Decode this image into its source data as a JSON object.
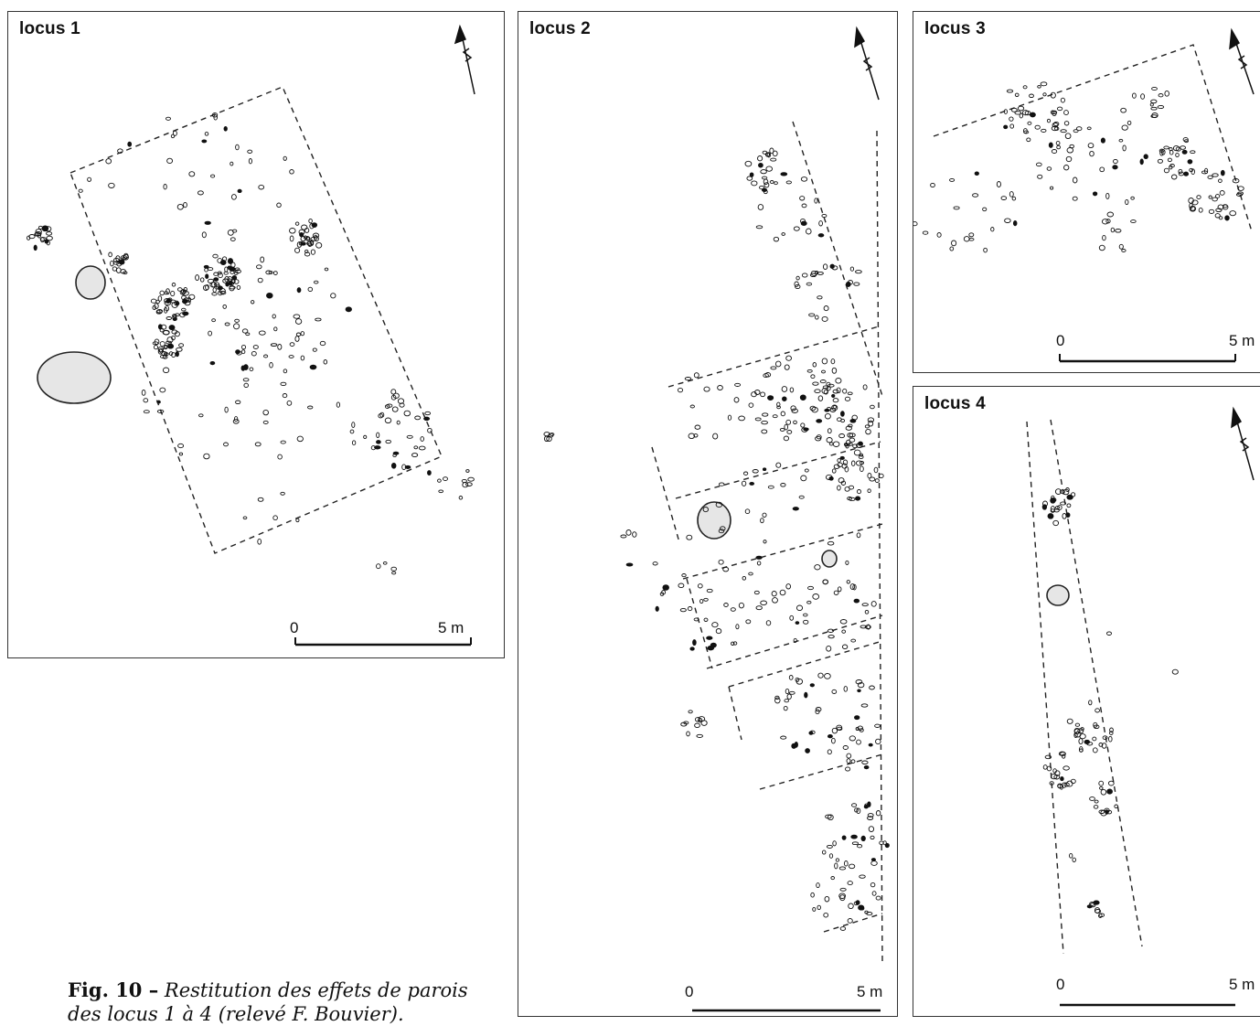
{
  "panels": [
    {
      "title": "locus 1",
      "scale_start": "0",
      "scale_end": "5 m"
    },
    {
      "title": "locus 2",
      "scale_start": "0",
      "scale_end": "5 m"
    },
    {
      "title": "locus 3",
      "scale_start": "0",
      "scale_end": "5 m"
    },
    {
      "title": "locus 4",
      "scale_start": "0",
      "scale_end": "5 m"
    }
  ],
  "caption": {
    "figure_label": "Fig. 10 –",
    "text_line1": " Restitution des effets de parois",
    "text_line2": "des locus 1 à 4 (relevé F. Bouvier)."
  },
  "colors": {
    "frame": "#333333",
    "hearth_fill": "#e6e6e6",
    "ink": "#111111"
  },
  "icons": [
    "north-arrow-icon"
  ]
}
